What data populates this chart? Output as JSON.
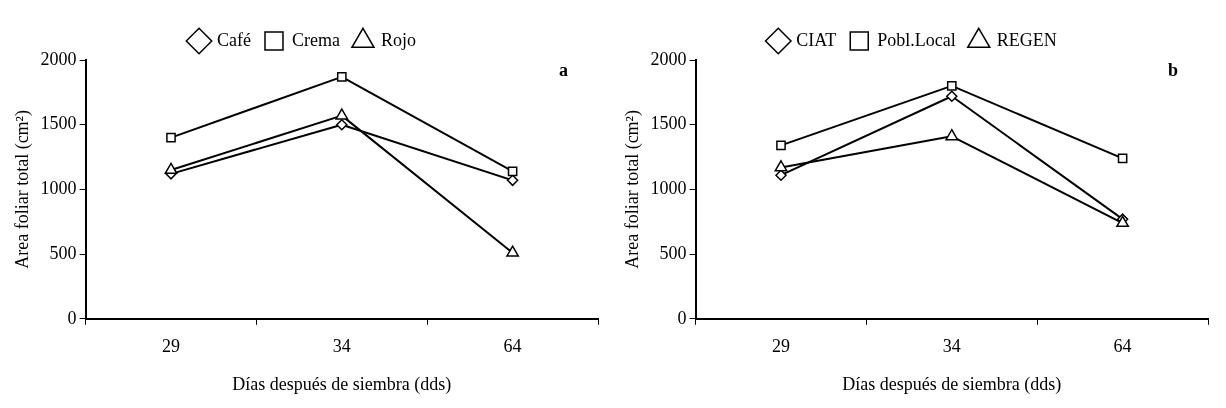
{
  "chart_data": [
    {
      "type": "line",
      "xlabel": "Días después de siembra (dds)",
      "ylabel": "Area foliar total (cm²)",
      "categories": [
        "29",
        "34",
        "64"
      ],
      "ylim": [
        0,
        2000
      ],
      "yticks": [
        0,
        500,
        1000,
        1500,
        2000
      ],
      "grid": false,
      "legend": "top",
      "annotations": [
        "a"
      ],
      "series": [
        {
          "name": "Café",
          "color": "#000000",
          "marker": "diamond",
          "values": [
            1120,
            1500,
            1070
          ]
        },
        {
          "name": "Crema",
          "color": "#000000",
          "marker": "square",
          "values": [
            1400,
            1870,
            1140
          ]
        },
        {
          "name": "Rojo",
          "color": "#000000",
          "marker": "triangle",
          "values": [
            1150,
            1570,
            510
          ]
        }
      ]
    },
    {
      "type": "line",
      "xlabel": "Días después de siembra (dds)",
      "ylabel": "Area foliar total (cm²)",
      "categories": [
        "29",
        "34",
        "64"
      ],
      "ylim": [
        0,
        2000
      ],
      "yticks": [
        0,
        500,
        1000,
        1500,
        2000
      ],
      "grid": false,
      "legend": "top",
      "annotations": [
        "b"
      ],
      "series": [
        {
          "name": "CIAT",
          "color": "#000000",
          "marker": "diamond",
          "values": [
            1110,
            1720,
            770
          ]
        },
        {
          "name": "Pobl.Local",
          "color": "#000000",
          "marker": "square",
          "values": [
            1340,
            1800,
            1240
          ]
        },
        {
          "name": "REGEN",
          "color": "#000000",
          "marker": "triangle",
          "values": [
            1170,
            1410,
            740
          ]
        }
      ]
    }
  ]
}
